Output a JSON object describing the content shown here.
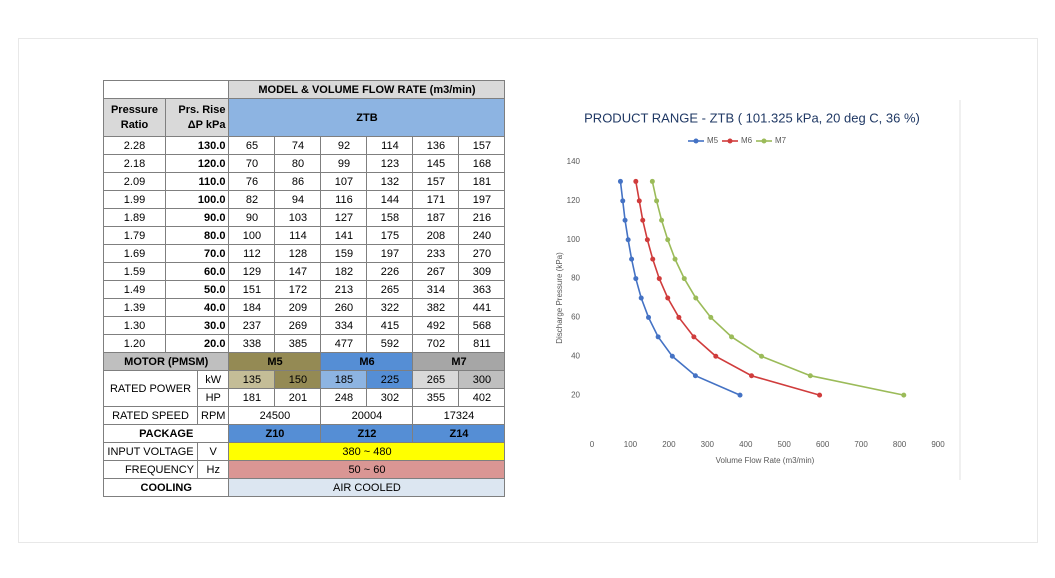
{
  "table": {
    "group_header": "MODEL & VOLUME FLOW RATE (m3/min)",
    "col_headers": [
      "Pressure Ratio",
      "Prs. Rise ΔP kPa",
      "ZTB"
    ],
    "rows": [
      [
        "2.28",
        "130.0",
        "65",
        "74",
        "92",
        "114",
        "136",
        "157"
      ],
      [
        "2.18",
        "120.0",
        "70",
        "80",
        "99",
        "123",
        "145",
        "168"
      ],
      [
        "2.09",
        "110.0",
        "76",
        "86",
        "107",
        "132",
        "157",
        "181"
      ],
      [
        "1.99",
        "100.0",
        "82",
        "94",
        "116",
        "144",
        "171",
        "197"
      ],
      [
        "1.89",
        "90.0",
        "90",
        "103",
        "127",
        "158",
        "187",
        "216"
      ],
      [
        "1.79",
        "80.0",
        "100",
        "114",
        "141",
        "175",
        "208",
        "240"
      ],
      [
        "1.69",
        "70.0",
        "112",
        "128",
        "159",
        "197",
        "233",
        "270"
      ],
      [
        "1.59",
        "60.0",
        "129",
        "147",
        "182",
        "226",
        "267",
        "309"
      ],
      [
        "1.49",
        "50.0",
        "151",
        "172",
        "213",
        "265",
        "314",
        "363"
      ],
      [
        "1.39",
        "40.0",
        "184",
        "209",
        "260",
        "322",
        "382",
        "441"
      ],
      [
        "1.30",
        "30.0",
        "237",
        "269",
        "334",
        "415",
        "492",
        "568"
      ],
      [
        "1.20",
        "20.0",
        "338",
        "385",
        "477",
        "592",
        "702",
        "811"
      ]
    ],
    "motor": {
      "label": "MOTOR (PMSM)",
      "models": [
        "M5",
        "M6",
        "M7"
      ]
    },
    "rated_power": {
      "label": "RATED POWER",
      "kw_unit": "kW",
      "kw": [
        "135",
        "150",
        "185",
        "225",
        "265",
        "300"
      ],
      "hp_unit": "HP",
      "hp": [
        "181",
        "201",
        "248",
        "302",
        "355",
        "402"
      ]
    },
    "rated_speed": {
      "label": "RATED SPEED",
      "unit": "RPM",
      "values": [
        "24500",
        "20004",
        "17324"
      ]
    },
    "package": {
      "label": "PACKAGE",
      "values": [
        "Z10",
        "Z12",
        "Z14"
      ]
    },
    "input_voltage": {
      "label": "INPUT VOLTAGE",
      "unit": "V",
      "value": "380 ~ 480"
    },
    "frequency": {
      "label": "FREQUENCY",
      "unit": "Hz",
      "value": "50 ~ 60"
    },
    "cooling": {
      "label": "COOLING",
      "value": "AIR COOLED"
    }
  },
  "chart_data": {
    "type": "line",
    "title": "PRODUCT RANGE - ZTB ( 101.325 kPa, 20 deg C, 36 %)",
    "x_label": "Volume Flow Rate (m3/min)",
    "y_label": "Discharge Pressure (kPa)",
    "legend": "top",
    "grid": false,
    "xlim": [
      0,
      900
    ],
    "xticks": [
      0,
      100,
      200,
      300,
      400,
      500,
      600,
      700,
      800,
      900
    ],
    "ylim": [
      0,
      140
    ],
    "yticks": [
      20,
      40,
      60,
      80,
      100,
      120,
      140
    ],
    "series": [
      {
        "name": "M5",
        "color": "#4472c4",
        "x": [
          74,
          80,
          86,
          94,
          103,
          114,
          128,
          147,
          172,
          209,
          269,
          385
        ],
        "values": [
          130,
          120,
          110,
          100,
          90,
          80,
          70,
          60,
          50,
          40,
          30,
          20
        ]
      },
      {
        "name": "M6",
        "color": "#d03c3c",
        "x": [
          114,
          123,
          132,
          144,
          158,
          175,
          197,
          226,
          265,
          322,
          415,
          592
        ],
        "values": [
          130,
          120,
          110,
          100,
          90,
          80,
          70,
          60,
          50,
          40,
          30,
          20
        ]
      },
      {
        "name": "M7",
        "color": "#9bbb59",
        "x": [
          157,
          168,
          181,
          197,
          216,
          240,
          270,
          309,
          363,
          441,
          568,
          811
        ],
        "values": [
          130,
          120,
          110,
          100,
          90,
          80,
          70,
          60,
          50,
          40,
          30,
          20
        ]
      }
    ]
  }
}
